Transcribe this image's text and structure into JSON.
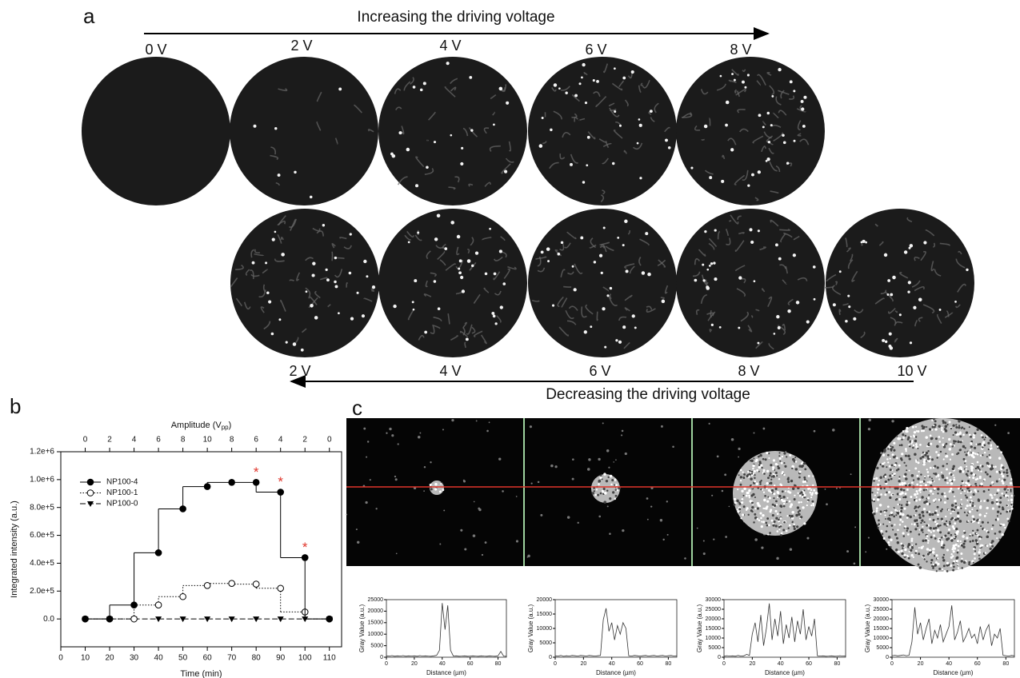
{
  "panel_a": {
    "label": "a",
    "top_arrow_text": "Increasing the driving voltage",
    "top_labels": [
      "0 V",
      "2 V",
      "4 V",
      "6 V",
      "8 V"
    ],
    "bottom_labels": [
      "2 V",
      "4 V",
      "6 V",
      "8 V",
      "10 V"
    ],
    "bottom_arrow_text": "Decreasing the driving voltage"
  },
  "panel_b": {
    "label": "b"
  },
  "panel_c": {
    "label": "c"
  },
  "chart_data": [
    {
      "type": "step",
      "xlabel": "Time (min)",
      "ylabel": "Integrated intensity (a.u.)",
      "x2label": [
        "Amplitude (V",
        "pp",
        ")"
      ],
      "x": [
        10,
        20,
        30,
        40,
        50,
        60,
        70,
        80,
        90,
        100,
        110
      ],
      "series": [
        {
          "name": "NP100-4",
          "color": "#000000",
          "marker": "filled-circle",
          "dash": "none",
          "values": [
            0,
            0,
            100000,
            475000,
            790000,
            950000,
            980000,
            980000,
            910000,
            440000,
            0
          ]
        },
        {
          "name": "NP100-1",
          "color": "#000000",
          "marker": "open-circle",
          "dash": "1.5,2",
          "values": [
            0,
            0,
            0,
            100000,
            160000,
            240000,
            255000,
            250000,
            220000,
            50000,
            0
          ]
        },
        {
          "name": "NP100-0",
          "color": "#000000",
          "marker": "triangle-down",
          "dash": "7,3",
          "values": [
            0,
            0,
            0,
            0,
            0,
            0,
            0,
            0,
            0,
            0,
            0
          ]
        }
      ],
      "xlim": [
        0,
        115
      ],
      "xticks": [
        0,
        10,
        20,
        30,
        40,
        50,
        60,
        70,
        80,
        90,
        100,
        110
      ],
      "x2ticks": [
        {
          "value": 10,
          "label": "0"
        },
        {
          "value": 20,
          "label": "2"
        },
        {
          "value": 30,
          "label": "4"
        },
        {
          "value": 40,
          "label": "6"
        },
        {
          "value": 50,
          "label": "8"
        },
        {
          "value": 60,
          "label": "10"
        },
        {
          "value": 70,
          "label": "8"
        },
        {
          "value": 80,
          "label": "6"
        },
        {
          "value": 90,
          "label": "4"
        },
        {
          "value": 100,
          "label": "2"
        },
        {
          "value": 110,
          "label": "0"
        }
      ],
      "ylim": [
        -200000,
        1200000
      ],
      "yticks": [
        {
          "value": 0,
          "label": "0.0"
        },
        {
          "value": 200000,
          "label": "2.0e+5"
        },
        {
          "value": 400000,
          "label": "4.0e+5"
        },
        {
          "value": 600000,
          "label": "6.0e+5"
        },
        {
          "value": 800000,
          "label": "8.0e+5"
        },
        {
          "value": 1000000,
          "label": "1.0e+6"
        },
        {
          "value": 1200000,
          "label": "1.2e+6"
        }
      ],
      "legend": "upper left",
      "annotations": [
        {
          "text": "*",
          "x": 80,
          "color": "#e0352b"
        },
        {
          "text": "*",
          "x": 90,
          "color": "#e0352b"
        },
        {
          "text": "*",
          "x": 100,
          "color": "#e0352b"
        }
      ]
    },
    {
      "type": "line",
      "xlabel": "Distance (µm)",
      "ylabel": "Gray Value (a.u.)",
      "color": "#333333",
      "x": [
        0,
        2,
        4,
        6,
        8,
        10,
        12,
        14,
        16,
        18,
        20,
        22,
        24,
        26,
        28,
        30,
        32,
        34,
        36,
        38,
        40,
        42,
        44,
        46,
        48,
        50,
        52,
        54,
        56,
        58,
        60,
        62,
        64,
        66,
        68,
        70,
        72,
        74,
        76,
        78,
        80,
        82,
        84,
        86
      ],
      "values": [
        600,
        500,
        700,
        400,
        600,
        500,
        700,
        400,
        600,
        500,
        600,
        400,
        700,
        500,
        600,
        500,
        400,
        600,
        800,
        3000,
        23500,
        12000,
        22500,
        3000,
        500,
        600,
        400,
        500,
        600,
        400,
        500,
        600,
        500,
        400,
        600,
        500,
        400,
        600,
        500,
        400,
        600,
        2500,
        500,
        400
      ],
      "xlim": [
        0,
        86
      ],
      "xticks": [
        0,
        20,
        40,
        60,
        80
      ],
      "ylim": [
        0,
        25000
      ],
      "yticks": [
        0,
        5000,
        10000,
        15000,
        20000,
        25000
      ]
    },
    {
      "type": "line",
      "xlabel": "Distance (µm)",
      "ylabel": "Gray Value (a.u.)",
      "color": "#333333",
      "x": [
        0,
        2,
        4,
        6,
        8,
        10,
        12,
        14,
        16,
        18,
        20,
        22,
        24,
        26,
        28,
        30,
        32,
        34,
        36,
        38,
        40,
        42,
        44,
        46,
        48,
        50,
        52,
        54,
        56,
        58,
        60,
        62,
        64,
        66,
        68,
        70,
        72,
        74,
        76,
        78,
        80,
        82,
        84,
        86
      ],
      "values": [
        500,
        400,
        600,
        300,
        500,
        400,
        600,
        500,
        400,
        600,
        500,
        400,
        600,
        500,
        400,
        500,
        600,
        13000,
        17000,
        9000,
        12000,
        6000,
        11000,
        8000,
        12000,
        10000,
        500,
        400,
        600,
        500,
        400,
        500,
        600,
        400,
        500,
        600,
        400,
        500,
        600,
        400,
        500,
        600,
        400,
        500
      ],
      "xlim": [
        0,
        86
      ],
      "xticks": [
        0,
        20,
        40,
        60,
        80
      ],
      "ylim": [
        0,
        20000
      ],
      "yticks": [
        0,
        5000,
        10000,
        15000,
        20000
      ]
    },
    {
      "type": "line",
      "xlabel": "Distance (µm)",
      "ylabel": "Gray Value (a.u.)",
      "color": "#333333",
      "x": [
        0,
        2,
        4,
        6,
        8,
        10,
        12,
        14,
        16,
        18,
        20,
        22,
        24,
        26,
        28,
        30,
        32,
        34,
        36,
        38,
        40,
        42,
        44,
        46,
        48,
        50,
        52,
        54,
        56,
        58,
        60,
        62,
        64,
        66,
        68,
        70,
        72,
        74,
        76,
        78,
        80,
        82,
        84,
        86
      ],
      "values": [
        500,
        800,
        600,
        700,
        500,
        900,
        600,
        700,
        1500,
        900,
        12000,
        18000,
        8000,
        22000,
        6000,
        15000,
        28000,
        9000,
        20000,
        11000,
        24000,
        7000,
        17000,
        10000,
        21000,
        8000,
        19000,
        12000,
        25000,
        9000,
        16000,
        11000,
        20000,
        800,
        600,
        700,
        500,
        600,
        700,
        500,
        600,
        800,
        600,
        700
      ],
      "xlim": [
        0,
        86
      ],
      "xticks": [
        0,
        20,
        40,
        60,
        80
      ],
      "ylim": [
        0,
        30000
      ],
      "yticks": [
        0,
        5000,
        10000,
        15000,
        20000,
        25000,
        30000
      ]
    },
    {
      "type": "line",
      "xlabel": "Distance (µm)",
      "ylabel": "Gray Value (a.u.)",
      "color": "#333333",
      "x": [
        0,
        2,
        4,
        6,
        8,
        10,
        12,
        14,
        16,
        18,
        20,
        22,
        24,
        26,
        28,
        30,
        32,
        34,
        36,
        38,
        40,
        42,
        44,
        46,
        48,
        50,
        52,
        54,
        56,
        58,
        60,
        62,
        64,
        66,
        68,
        70,
        72,
        74,
        76,
        78,
        80,
        82,
        84,
        86
      ],
      "values": [
        800,
        1000,
        700,
        900,
        1200,
        800,
        1000,
        8000,
        26000,
        12000,
        18000,
        9000,
        15000,
        20000,
        7000,
        14000,
        10000,
        17000,
        8000,
        12000,
        16000,
        27000,
        9000,
        13000,
        19000,
        8000,
        11000,
        15000,
        10000,
        12000,
        7000,
        16000,
        9000,
        14000,
        17000,
        6000,
        12000,
        10000,
        15000,
        1000,
        800,
        600,
        900,
        700
      ],
      "xlim": [
        0,
        86
      ],
      "xticks": [
        0,
        20,
        40,
        60,
        80
      ],
      "ylim": [
        0,
        30000
      ],
      "yticks": [
        0,
        5000,
        10000,
        15000,
        20000,
        25000,
        30000
      ]
    }
  ]
}
